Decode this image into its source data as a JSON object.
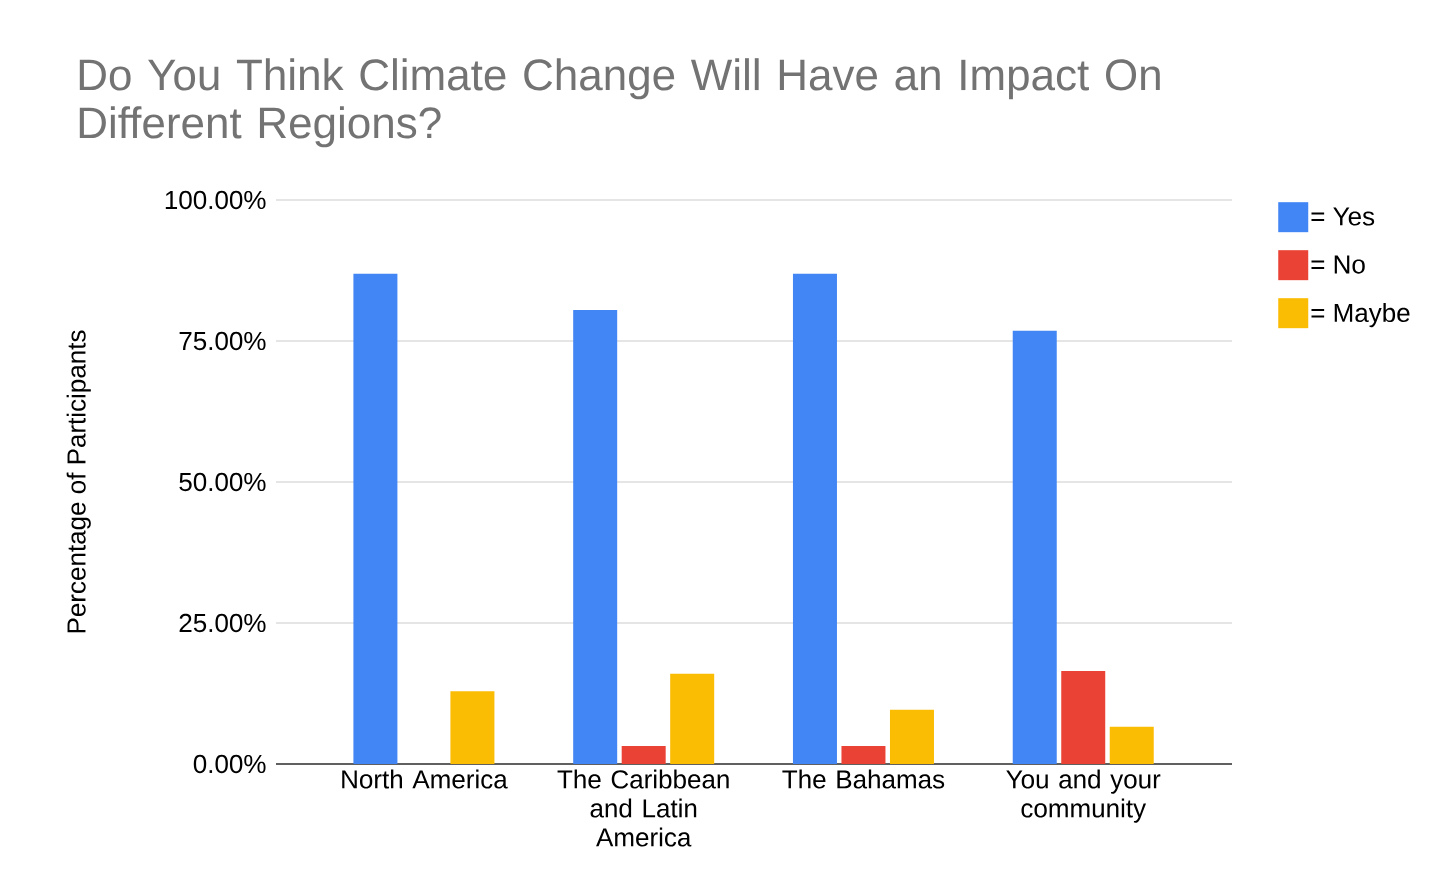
{
  "chart_data": {
    "type": "bar",
    "title": "Do You Think Climate Change Will Have an Impact On Different Regions?",
    "ylabel": "Percentage of Participants",
    "categories": [
      "North America",
      "The Caribbean and Latin America",
      "The Bahamas",
      "You and your community"
    ],
    "series": [
      {
        "name": "= Yes",
        "color": "#4285f4",
        "values": [
          86.9,
          80.5,
          86.9,
          76.8
        ]
      },
      {
        "name": "= No",
        "color": "#ea4335",
        "values": [
          0,
          3.2,
          3.2,
          16.5
        ]
      },
      {
        "name": "= Maybe",
        "color": "#fbbc04",
        "values": [
          12.9,
          16.0,
          9.6,
          6.6
        ]
      }
    ],
    "ylim": [
      0,
      100
    ],
    "yticks": [
      {
        "value": 0,
        "label": "0.00%"
      },
      {
        "value": 25,
        "label": "25.00%"
      },
      {
        "value": 50,
        "label": "50.00%"
      },
      {
        "value": 75,
        "label": "75.00%"
      },
      {
        "value": 100,
        "label": "100.00%"
      }
    ],
    "grid": "y",
    "legend": "top right"
  }
}
